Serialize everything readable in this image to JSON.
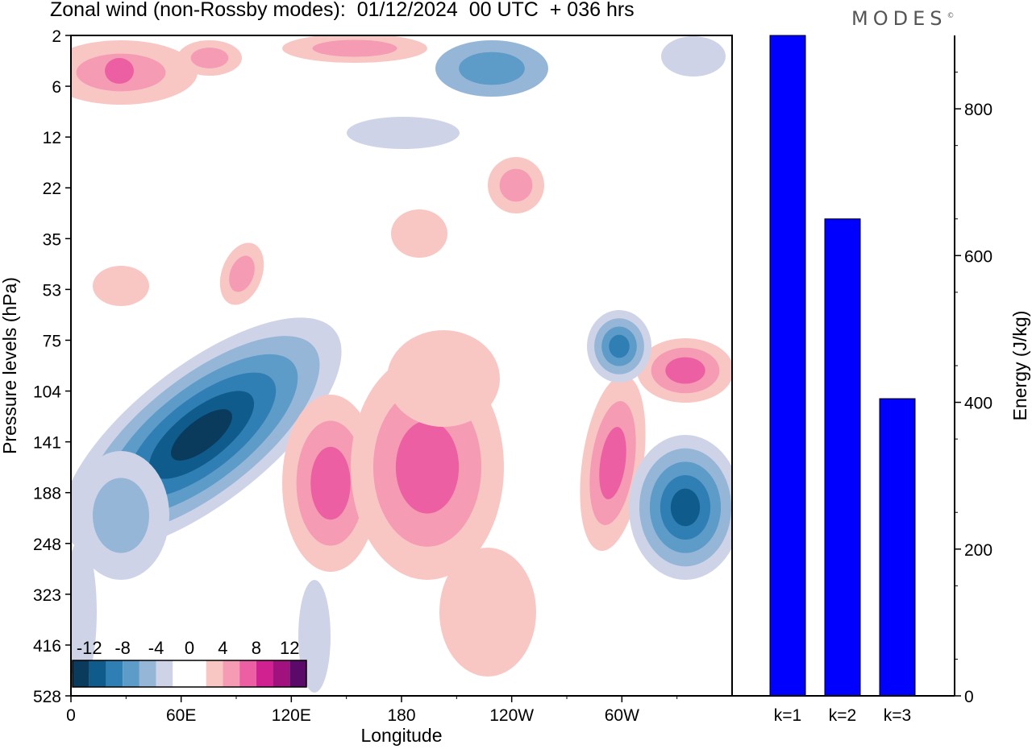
{
  "header": {
    "title": "Zonal wind (non-Rossby modes):  01/12/2024  00 UTC  + 036 hrs",
    "brand": "MODES",
    "brand_mark": "©"
  },
  "chart_data": [
    {
      "type": "heatmap",
      "title": "Zonal wind (non-Rossby modes):  01/12/2024  00 UTC  + 036 hrs",
      "xlabel": "Longitude",
      "ylabel": "Pressure levels (hPa)",
      "x_ticks": [
        "0",
        "60E",
        "120E",
        "180",
        "120W",
        "60W"
      ],
      "x_tick_values": [
        0,
        60,
        120,
        180,
        240,
        300
      ],
      "xlim": [
        0,
        360
      ],
      "y_levels": [
        "2",
        "6",
        "12",
        "22",
        "35",
        "53",
        "75",
        "104",
        "141",
        "188",
        "248",
        "323",
        "416",
        "528"
      ],
      "colorbar": {
        "tick_labels": [
          "-12",
          "-8",
          "-4",
          "0",
          "4",
          "8",
          "12"
        ],
        "levels": [
          -14,
          -12,
          -10,
          -8,
          -6,
          -4,
          -2,
          0,
          2,
          4,
          6,
          8,
          10,
          12,
          14
        ],
        "colors": [
          "#0a3b5c",
          "#0f5c8c",
          "#2f7fb5",
          "#5d9bc8",
          "#96b6d8",
          "#cfd3e8",
          "#ffffff",
          "#ffffff",
          "#f8c7c4",
          "#f59bb3",
          "#ec5fa3",
          "#d1208f",
          "#a2127e",
          "#5c0a69"
        ],
        "location": "bottom-left"
      },
      "features": [
        {
          "name": "easterly jet core",
          "lon": 75,
          "level": "141",
          "value": -13
        },
        {
          "name": "westerly maximum",
          "lon": 200,
          "level": "141",
          "value": 7
        },
        {
          "name": "westerly maximum",
          "lon": 140,
          "level": "188",
          "value": 6
        },
        {
          "name": "easterly minimum",
          "lon": 330,
          "level": "188",
          "value": -9
        },
        {
          "name": "easterly minimum",
          "lon": 305,
          "level": "75",
          "value": -7
        },
        {
          "name": "westerly maximum",
          "lon": 30,
          "level": "6",
          "value": 7
        }
      ]
    },
    {
      "type": "bar",
      "categories": [
        "k=1",
        "k=2",
        "k=3"
      ],
      "values": [
        900,
        650,
        405
      ],
      "ylabel": "Energy (J/kg)",
      "ylim": [
        0,
        900
      ],
      "y_ticks": [
        0,
        200,
        400,
        600,
        800
      ],
      "bar_color": "#0000ff",
      "grid": false
    }
  ]
}
